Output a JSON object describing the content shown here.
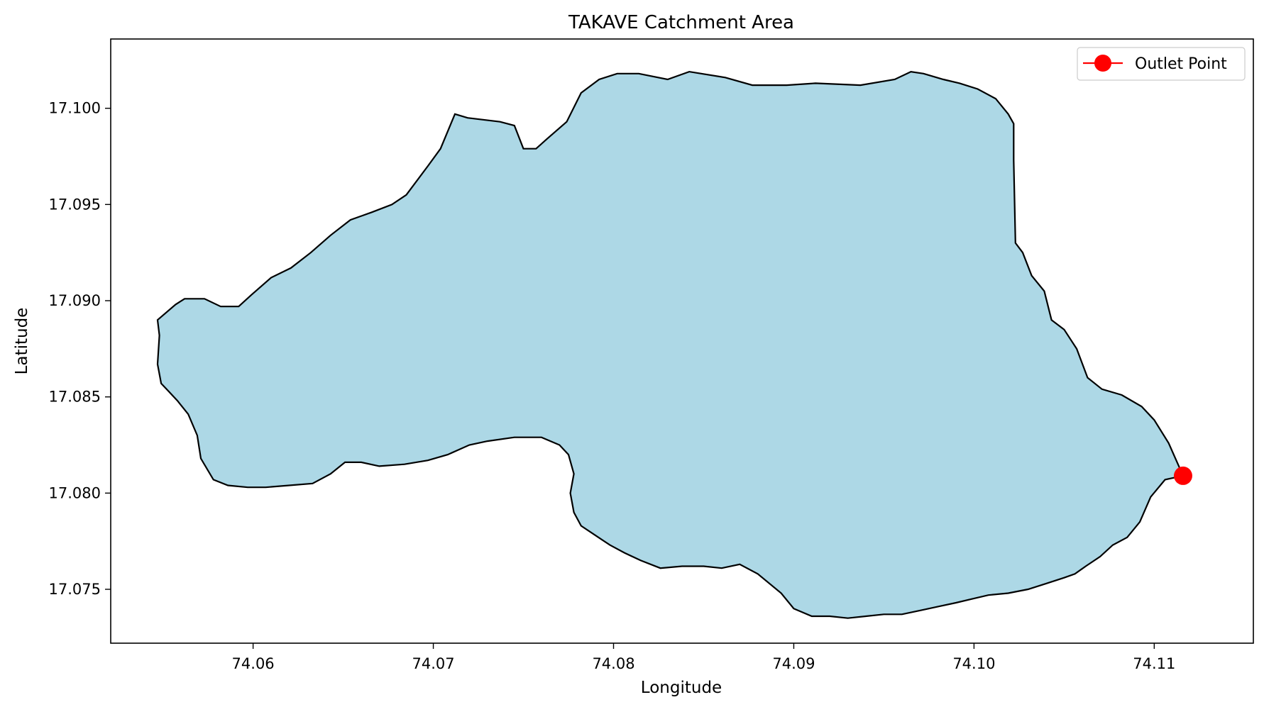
{
  "chart_data": {
    "type": "map",
    "title": "TAKAVE Catchment Area",
    "xlabel": "Longitude",
    "ylabel": "Latitude",
    "xlim": [
      74.0521,
      74.1155
    ],
    "ylim": [
      17.0722,
      17.1036
    ],
    "xticks": [
      74.06,
      74.07,
      74.08,
      74.09,
      74.1,
      74.11
    ],
    "xtick_labels": [
      "74.06",
      "74.07",
      "74.08",
      "74.09",
      "74.10",
      "74.11"
    ],
    "yticks": [
      17.075,
      17.08,
      17.085,
      17.09,
      17.095,
      17.1
    ],
    "ytick_labels": [
      "17.075",
      "17.080",
      "17.085",
      "17.090",
      "17.095",
      "17.100"
    ],
    "grid": false,
    "catchment": {
      "fill": "#add8e6",
      "edge": "#000000",
      "boundary": [
        [
          74.0547,
          17.089
        ],
        [
          74.0557,
          17.0898
        ],
        [
          74.0562,
          17.0901
        ],
        [
          74.0573,
          17.0901
        ],
        [
          74.0582,
          17.0897
        ],
        [
          74.0592,
          17.0897
        ],
        [
          74.0599,
          17.0903
        ],
        [
          74.061,
          17.0912
        ],
        [
          74.0621,
          17.0917
        ],
        [
          74.0632,
          17.0925
        ],
        [
          74.0643,
          17.0934
        ],
        [
          74.0654,
          17.0942
        ],
        [
          74.0666,
          17.0946
        ],
        [
          74.0677,
          17.095
        ],
        [
          74.0685,
          17.0955
        ],
        [
          74.0697,
          17.097
        ],
        [
          74.0704,
          17.0979
        ],
        [
          74.0712,
          17.0997
        ],
        [
          74.0719,
          17.0995
        ],
        [
          74.0737,
          17.0993
        ],
        [
          74.0745,
          17.0991
        ],
        [
          74.075,
          17.0979
        ],
        [
          74.0757,
          17.0979
        ],
        [
          74.0763,
          17.0984
        ],
        [
          74.0774,
          17.0993
        ],
        [
          74.0782,
          17.1008
        ],
        [
          74.0792,
          17.1015
        ],
        [
          74.0802,
          17.1018
        ],
        [
          74.0814,
          17.1018
        ],
        [
          74.083,
          17.1015
        ],
        [
          74.0842,
          17.1019
        ],
        [
          74.0862,
          17.1016
        ],
        [
          74.0877,
          17.1012
        ],
        [
          74.0896,
          17.1012
        ],
        [
          74.0912,
          17.1013
        ],
        [
          74.0937,
          17.1012
        ],
        [
          74.0956,
          17.1015
        ],
        [
          74.0965,
          17.1019
        ],
        [
          74.0972,
          17.1018
        ],
        [
          74.0983,
          17.1015
        ],
        [
          74.0992,
          17.1013
        ],
        [
          74.1002,
          17.101
        ],
        [
          74.1012,
          17.1005
        ],
        [
          74.1019,
          17.0997
        ],
        [
          74.1022,
          17.0992
        ],
        [
          74.1022,
          17.0973
        ],
        [
          74.1023,
          17.093
        ],
        [
          74.1027,
          17.0925
        ],
        [
          74.1032,
          17.0913
        ],
        [
          74.1039,
          17.0905
        ],
        [
          74.1043,
          17.089
        ],
        [
          74.105,
          17.0885
        ],
        [
          74.1057,
          17.0875
        ],
        [
          74.1063,
          17.086
        ],
        [
          74.1071,
          17.0854
        ],
        [
          74.1082,
          17.0851
        ],
        [
          74.1093,
          17.0845
        ],
        [
          74.11,
          17.0838
        ],
        [
          74.1108,
          17.0826
        ],
        [
          74.1116,
          17.0809
        ],
        [
          74.1106,
          17.0807
        ],
        [
          74.1098,
          17.0798
        ],
        [
          74.1092,
          17.0785
        ],
        [
          74.1085,
          17.0777
        ],
        [
          74.1077,
          17.0773
        ],
        [
          74.107,
          17.0767
        ],
        [
          74.1062,
          17.0762
        ],
        [
          74.1056,
          17.0758
        ],
        [
          74.105,
          17.0756
        ],
        [
          74.104,
          17.0753
        ],
        [
          74.103,
          17.075
        ],
        [
          74.1019,
          17.0748
        ],
        [
          74.1008,
          17.0747
        ],
        [
          74.0999,
          17.0745
        ],
        [
          74.099,
          17.0743
        ],
        [
          74.098,
          17.0741
        ],
        [
          74.097,
          17.0739
        ],
        [
          74.096,
          17.0737
        ],
        [
          74.095,
          17.0737
        ],
        [
          74.094,
          17.0736
        ],
        [
          74.093,
          17.0735
        ],
        [
          74.092,
          17.0736
        ],
        [
          74.091,
          17.0736
        ],
        [
          74.09,
          17.074
        ],
        [
          74.0893,
          17.0748
        ],
        [
          74.088,
          17.0758
        ],
        [
          74.087,
          17.0763
        ],
        [
          74.086,
          17.0761
        ],
        [
          74.085,
          17.0762
        ],
        [
          74.0838,
          17.0762
        ],
        [
          74.0826,
          17.0761
        ],
        [
          74.0815,
          17.0765
        ],
        [
          74.0806,
          17.0769
        ],
        [
          74.0798,
          17.0773
        ],
        [
          74.079,
          17.0778
        ],
        [
          74.0782,
          17.0783
        ],
        [
          74.0778,
          17.079
        ],
        [
          74.0776,
          17.08
        ],
        [
          74.0778,
          17.081
        ],
        [
          74.0775,
          17.082
        ],
        [
          74.077,
          17.0825
        ],
        [
          74.076,
          17.0829
        ],
        [
          74.0745,
          17.0829
        ],
        [
          74.073,
          17.0827
        ],
        [
          74.072,
          17.0825
        ],
        [
          74.0708,
          17.082
        ],
        [
          74.0697,
          17.0817
        ],
        [
          74.0684,
          17.0815
        ],
        [
          74.067,
          17.0814
        ],
        [
          74.066,
          17.0816
        ],
        [
          74.0651,
          17.0816
        ],
        [
          74.0643,
          17.081
        ],
        [
          74.0633,
          17.0805
        ],
        [
          74.062,
          17.0804
        ],
        [
          74.0607,
          17.0803
        ],
        [
          74.0597,
          17.0803
        ],
        [
          74.0586,
          17.0804
        ],
        [
          74.0578,
          17.0807
        ],
        [
          74.0571,
          17.0818
        ],
        [
          74.0569,
          17.083
        ],
        [
          74.0564,
          17.0841
        ],
        [
          74.0558,
          17.0848
        ],
        [
          74.0553,
          17.0853
        ],
        [
          74.0549,
          17.0857
        ],
        [
          74.0547,
          17.0867
        ],
        [
          74.0548,
          17.0882
        ]
      ]
    },
    "outlet": {
      "label": "Outlet Point",
      "lon": 74.1116,
      "lat": 17.0809,
      "color": "#ff0000"
    },
    "legend_loc": "upper right"
  }
}
